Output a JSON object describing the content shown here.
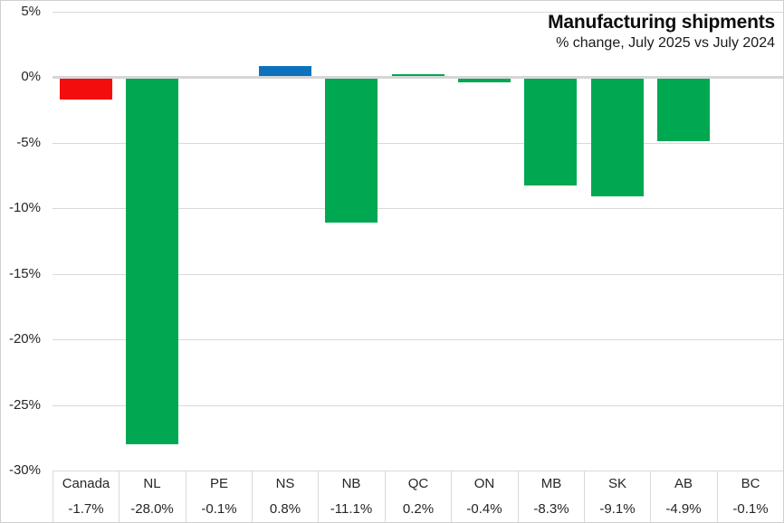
{
  "chart_data": {
    "type": "bar",
    "title": "Manufacturing shipments",
    "subtitle": "% change, July 2025 vs July 2024",
    "categories": [
      "Canada",
      "NL",
      "PE",
      "NS",
      "NB",
      "QC",
      "ON",
      "MB",
      "SK",
      "AB",
      "BC"
    ],
    "values": [
      -1.7,
      -28.0,
      -0.1,
      0.8,
      -11.1,
      0.2,
      -0.4,
      -8.3,
      -9.1,
      -4.9,
      -0.1
    ],
    "value_labels": [
      "-1.7%",
      "-28.0%",
      "-0.1%",
      "0.8%",
      "-11.1%",
      "0.2%",
      "-0.4%",
      "-8.3%",
      "-9.1%",
      "-4.9%",
      "-0.1%"
    ],
    "bar_colors": [
      "#f40d0d",
      "#00a851",
      "#00a851",
      "#0d72bd",
      "#00a851",
      "#00a851",
      "#00a851",
      "#00a851",
      "#00a851",
      "#00a851",
      "#00a851"
    ],
    "ylabel": "",
    "ylim": [
      -30,
      5
    ],
    "ytick_values": [
      5,
      0,
      -5,
      -10,
      -15,
      -20,
      -25,
      -30
    ],
    "ytick_labels": [
      "5%",
      "0%",
      "-5%",
      "-10%",
      "-15%",
      "-20%",
      "-25%",
      "-30%"
    ],
    "grid": true,
    "legend": "none"
  },
  "colors": {
    "grid": "#d9d9d9",
    "zero_axis": "#d6d6d6",
    "text": "#262626",
    "canada_red": "#f40d0d",
    "province_green": "#00a851",
    "ns_blue": "#0d72bd",
    "border": "#cfcfcf",
    "background": "#ffffff"
  }
}
